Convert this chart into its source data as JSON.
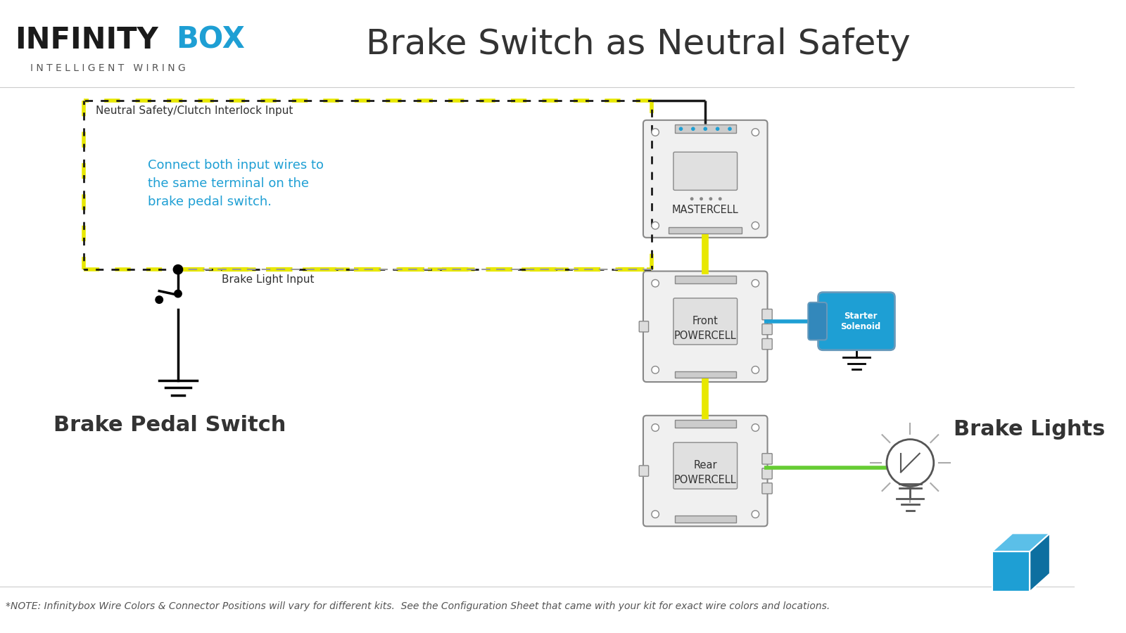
{
  "title": "Brake Switch as Neutral Safety",
  "bg_color": "#ffffff",
  "title_color": "#333333",
  "title_fontsize": 36,
  "logo_text_infinity": "INFINITY",
  "logo_text_box": "BOX",
  "logo_sub": "I N T E L L I G E N T   W I R I N G",
  "logo_color_main": "#1a1a1a",
  "logo_color_box": "#1e9fd4",
  "note_text": "*NOTE: Infinitybox Wire Colors & Connector Positions will vary for different kits.  See the Configuration Sheet that came with your kit for exact wire colors and locations.",
  "note_fontsize": 10,
  "annotation_color": "#1e9fd4",
  "annotation_text": "Connect both input wires to\nthe same terminal on the\nbrake pedal switch.",
  "label_neutral": "Neutral Safety/Clutch Interlock Input",
  "label_brake": "Brake Light Input",
  "label_switch": "Brake Pedal Switch",
  "label_mastercell": "MASTERCELL",
  "label_front": "Front\nPOWERCELL",
  "label_rear": "Rear\nPOWERCELL",
  "label_starter": "Starter\nSolenoid",
  "label_brake_lights": "Brake Lights",
  "wire_yellow": "#e8e800",
  "wire_black": "#1a1a1a",
  "wire_green": "#66cc33",
  "wire_blue": "#1e9fd4",
  "box_edge": "#888888",
  "box_fill": "#f0f0f0",
  "solenoid_color": "#1e9fd4",
  "ground_color": "#1a1a1a"
}
